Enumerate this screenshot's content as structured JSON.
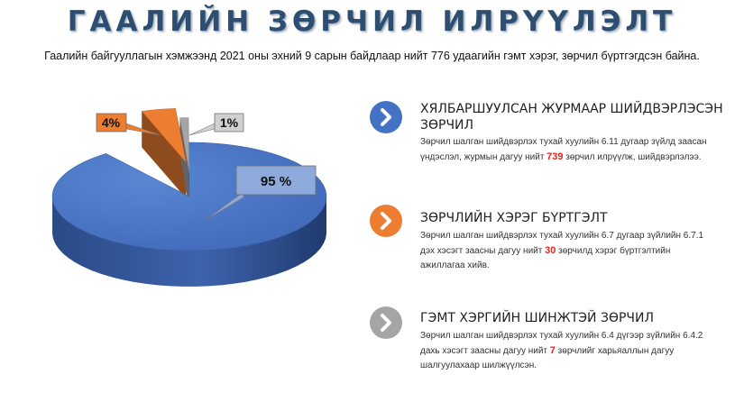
{
  "header": {
    "title": "ГААЛИЙН ЗӨРЧИЛ ИЛРҮҮЛЭЛТ",
    "subtitle": "Гаалийн байгууллагын хэмжээнд 2021 оны эхний 9 сарын байдлаар нийт 776 удаагийн гэмт хэрэг, зөрчил бүртгэгдсэн байна."
  },
  "chart_data": {
    "type": "pie",
    "labels": [
      "95 %",
      "4%",
      "1%"
    ],
    "values": [
      95,
      4,
      1
    ],
    "colors": [
      "#4472c4",
      "#ed7d31",
      "#a5a5a5"
    ]
  },
  "items": [
    {
      "icon": "chevron-right-icon",
      "color": "#4472c4",
      "title": "ХЯЛБАРШУУЛСАН ЖУРМААР ШИЙДВЭРЛЭСЭН ЗӨРЧИЛ",
      "desc_before": "Зөрчил шалган шийдвэрлэх тухай хуулийн 6.11 дугаар зүйлд заасан үндэслэл, журмын дагуу нийт ",
      "number": "739",
      "desc_after": " зөрчил илрүүлж, шийдвэрлэлээ."
    },
    {
      "icon": "chevron-right-icon",
      "color": "#ed7d31",
      "title": "ЗӨРЧЛИЙН ХЭРЭГ БҮРТГЭЛТ",
      "desc_before": "Зөрчил шалган шийдвэрлэх тухай хуулийн 6.7 дугаар зүйлийн 6.7.1 дэх хэсэгт заасны дагуу нийт ",
      "number": "30",
      "desc_after": " зөрчилд хэрэг бүртгэлтийн ажиллагаа хийв."
    },
    {
      "icon": "chevron-right-icon",
      "color": "#a5a5a5",
      "title": "ГЭМТ ХЭРГИЙН ШИНЖТЭЙ ЗӨРЧИЛ",
      "desc_before": "Зөрчил шалган шийдвэрлэх тухай хуулийн 6.4 дүгээр зүйлийн 6.4.2 дахь хэсэгт заасны дагуу нийт ",
      "number": "7",
      "desc_after": " зөрчлийг харьяаллын дагуу шалгуулахаар шилжүүлсэн."
    }
  ]
}
